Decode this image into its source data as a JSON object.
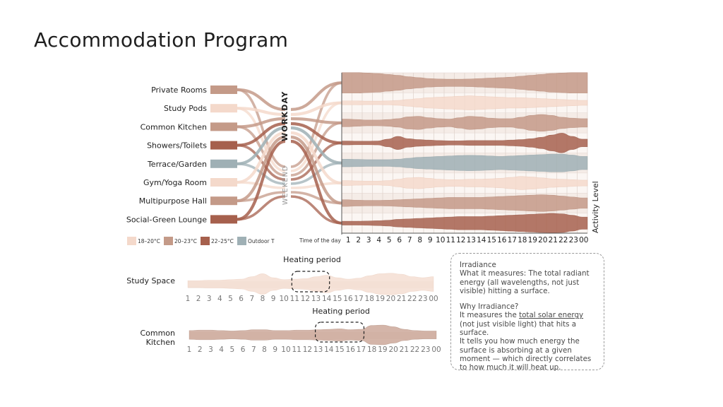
{
  "title": "Accommodation Program",
  "spaces": [
    {
      "label": "Private Rooms",
      "temp": "20-23"
    },
    {
      "label": "Study Pods",
      "temp": "18-20"
    },
    {
      "label": "Common Kitchen",
      "temp": "20-23"
    },
    {
      "label": "Showers/Toilets",
      "temp": "22-25"
    },
    {
      "label": "Terrace/Garden",
      "temp": "outdoor"
    },
    {
      "label": "Gym/Yoga Room",
      "temp": "18-20"
    },
    {
      "label": "Multipurpose Hall",
      "temp": "20-23"
    },
    {
      "label": "Social-Green Lounge",
      "temp": "22-25"
    }
  ],
  "day_types": {
    "workday": "WORKDAY",
    "weekend": "WEEKEND"
  },
  "legend": [
    {
      "key": "18-20",
      "label": "18–20°C",
      "color": "#f4d9cb"
    },
    {
      "key": "20-23",
      "label": "20–23°C",
      "color": "#c49a88"
    },
    {
      "key": "22-25",
      "label": "22–25°C",
      "color": "#a6604d"
    },
    {
      "key": "outdoor",
      "label": "Outdoor T",
      "color": "#9fb0b5"
    }
  ],
  "colors": {
    "grid_bg": "#f5ece7",
    "grid_line": "#ffffff",
    "axis": "#555555"
  },
  "chart_data": [
    {
      "type": "area",
      "title": "",
      "xlabel": "Time of the day",
      "ylabel": "Activity Level",
      "x": [
        "1",
        "2",
        "3",
        "4",
        "5",
        "6",
        "7",
        "8",
        "9",
        "10",
        "11",
        "12",
        "13",
        "14",
        "15",
        "16",
        "17",
        "18",
        "19",
        "20",
        "21",
        "22",
        "23",
        "00"
      ],
      "series": [
        {
          "name": "Private Rooms",
          "values": [
            1.0,
            1.0,
            0.95,
            0.9,
            0.8,
            0.7,
            0.55,
            0.45,
            0.35,
            0.3,
            0.28,
            0.28,
            0.3,
            0.35,
            0.4,
            0.45,
            0.5,
            0.6,
            0.7,
            0.8,
            0.9,
            0.95,
            1.0,
            1.0
          ]
        },
        {
          "name": "Study Pods",
          "values": [
            0.1,
            0.1,
            0.08,
            0.08,
            0.1,
            0.15,
            0.25,
            0.35,
            0.45,
            0.5,
            0.55,
            0.6,
            0.65,
            0.6,
            0.55,
            0.5,
            0.45,
            0.45,
            0.4,
            0.35,
            0.3,
            0.25,
            0.2,
            0.15
          ]
        },
        {
          "name": "Common Kitchen",
          "values": [
            0.3,
            0.25,
            0.2,
            0.2,
            0.25,
            0.35,
            0.55,
            0.6,
            0.45,
            0.35,
            0.3,
            0.45,
            0.6,
            0.55,
            0.4,
            0.35,
            0.35,
            0.5,
            0.7,
            0.8,
            0.7,
            0.5,
            0.4,
            0.35
          ]
        },
        {
          "name": "Showers/Toilets",
          "values": [
            0.1,
            0.08,
            0.08,
            0.1,
            0.3,
            0.6,
            0.35,
            0.25,
            0.2,
            0.15,
            0.12,
            0.12,
            0.15,
            0.15,
            0.15,
            0.15,
            0.2,
            0.25,
            0.35,
            0.5,
            0.75,
            0.95,
            0.6,
            0.3
          ]
        },
        {
          "name": "Terrace/Garden",
          "values": [
            0.3,
            0.28,
            0.25,
            0.25,
            0.25,
            0.3,
            0.4,
            0.5,
            0.55,
            0.6,
            0.65,
            0.7,
            0.72,
            0.7,
            0.65,
            0.6,
            0.65,
            0.7,
            0.75,
            0.8,
            0.85,
            0.85,
            0.75,
            0.6
          ]
        },
        {
          "name": "Gym/Yoga Room",
          "values": [
            0.15,
            0.12,
            0.1,
            0.1,
            0.15,
            0.3,
            0.45,
            0.5,
            0.4,
            0.3,
            0.25,
            0.25,
            0.3,
            0.3,
            0.35,
            0.4,
            0.5,
            0.6,
            0.55,
            0.45,
            0.35,
            0.3,
            0.25,
            0.2
          ]
        },
        {
          "name": "Multipurpose Hall",
          "values": [
            0.25,
            0.2,
            0.18,
            0.18,
            0.2,
            0.25,
            0.3,
            0.35,
            0.4,
            0.45,
            0.5,
            0.5,
            0.5,
            0.5,
            0.55,
            0.6,
            0.65,
            0.7,
            0.75,
            0.8,
            0.75,
            0.65,
            0.55,
            0.45
          ]
        },
        {
          "name": "Social-Green Lounge",
          "values": [
            0.1,
            0.1,
            0.12,
            0.15,
            0.2,
            0.3,
            0.35,
            0.4,
            0.45,
            0.5,
            0.55,
            0.6,
            0.6,
            0.6,
            0.65,
            0.7,
            0.75,
            0.8,
            0.85,
            0.9,
            0.95,
            0.9,
            0.75,
            0.55
          ]
        }
      ]
    },
    {
      "type": "area",
      "title": "Heating period",
      "xlabel": "",
      "ylabel": "Study Space",
      "x": [
        "1",
        "2",
        "3",
        "4",
        "5",
        "6",
        "7",
        "8",
        "9",
        "10",
        "11",
        "12",
        "13",
        "14",
        "15",
        "16",
        "17",
        "18",
        "19",
        "20",
        "21",
        "22",
        "23",
        "00"
      ],
      "series": [
        {
          "name": "",
          "values": [
            0.2,
            0.2,
            0.25,
            0.25,
            0.3,
            0.35,
            0.6,
            0.9,
            0.5,
            0.3,
            0.35,
            0.4,
            0.6,
            0.75,
            0.5,
            0.35,
            0.45,
            0.7,
            0.9,
            0.95,
            0.85,
            0.6,
            0.5,
            0.6
          ]
        }
      ],
      "highlight": [
        "11",
        "14"
      ]
    },
    {
      "type": "area",
      "title": "Heating period",
      "xlabel": "",
      "ylabel": "Common Kitchen",
      "x": [
        "1",
        "2",
        "3",
        "4",
        "5",
        "6",
        "7",
        "8",
        "9",
        "10",
        "11",
        "12",
        "13",
        "14",
        "15",
        "16",
        "17",
        "18",
        "19",
        "20",
        "21",
        "22",
        "23",
        "00"
      ],
      "series": [
        {
          "name": "",
          "values": [
            0.35,
            0.4,
            0.4,
            0.35,
            0.3,
            0.35,
            0.45,
            0.45,
            0.35,
            0.35,
            0.4,
            0.4,
            0.45,
            0.5,
            0.55,
            0.45,
            0.5,
            0.95,
            1.0,
            0.8,
            0.5,
            0.35,
            0.3,
            0.3
          ]
        }
      ],
      "highlight": [
        "13",
        "17"
      ]
    }
  ],
  "irradiance": {
    "title": "Irradiance",
    "measures": "What it measures: The total radiant energy (all wavelengths, not just visible) hitting a surface.",
    "why_title": "Why Irradiance?",
    "why_pre": "It measures the ",
    "why_underlined": "total solar energy",
    "why_post": " (not just visible light) that hits a surface.",
    "tells": "It tells you how much energy the surface is absorbing at a given moment — which directly correlates to how much it will heat up."
  }
}
